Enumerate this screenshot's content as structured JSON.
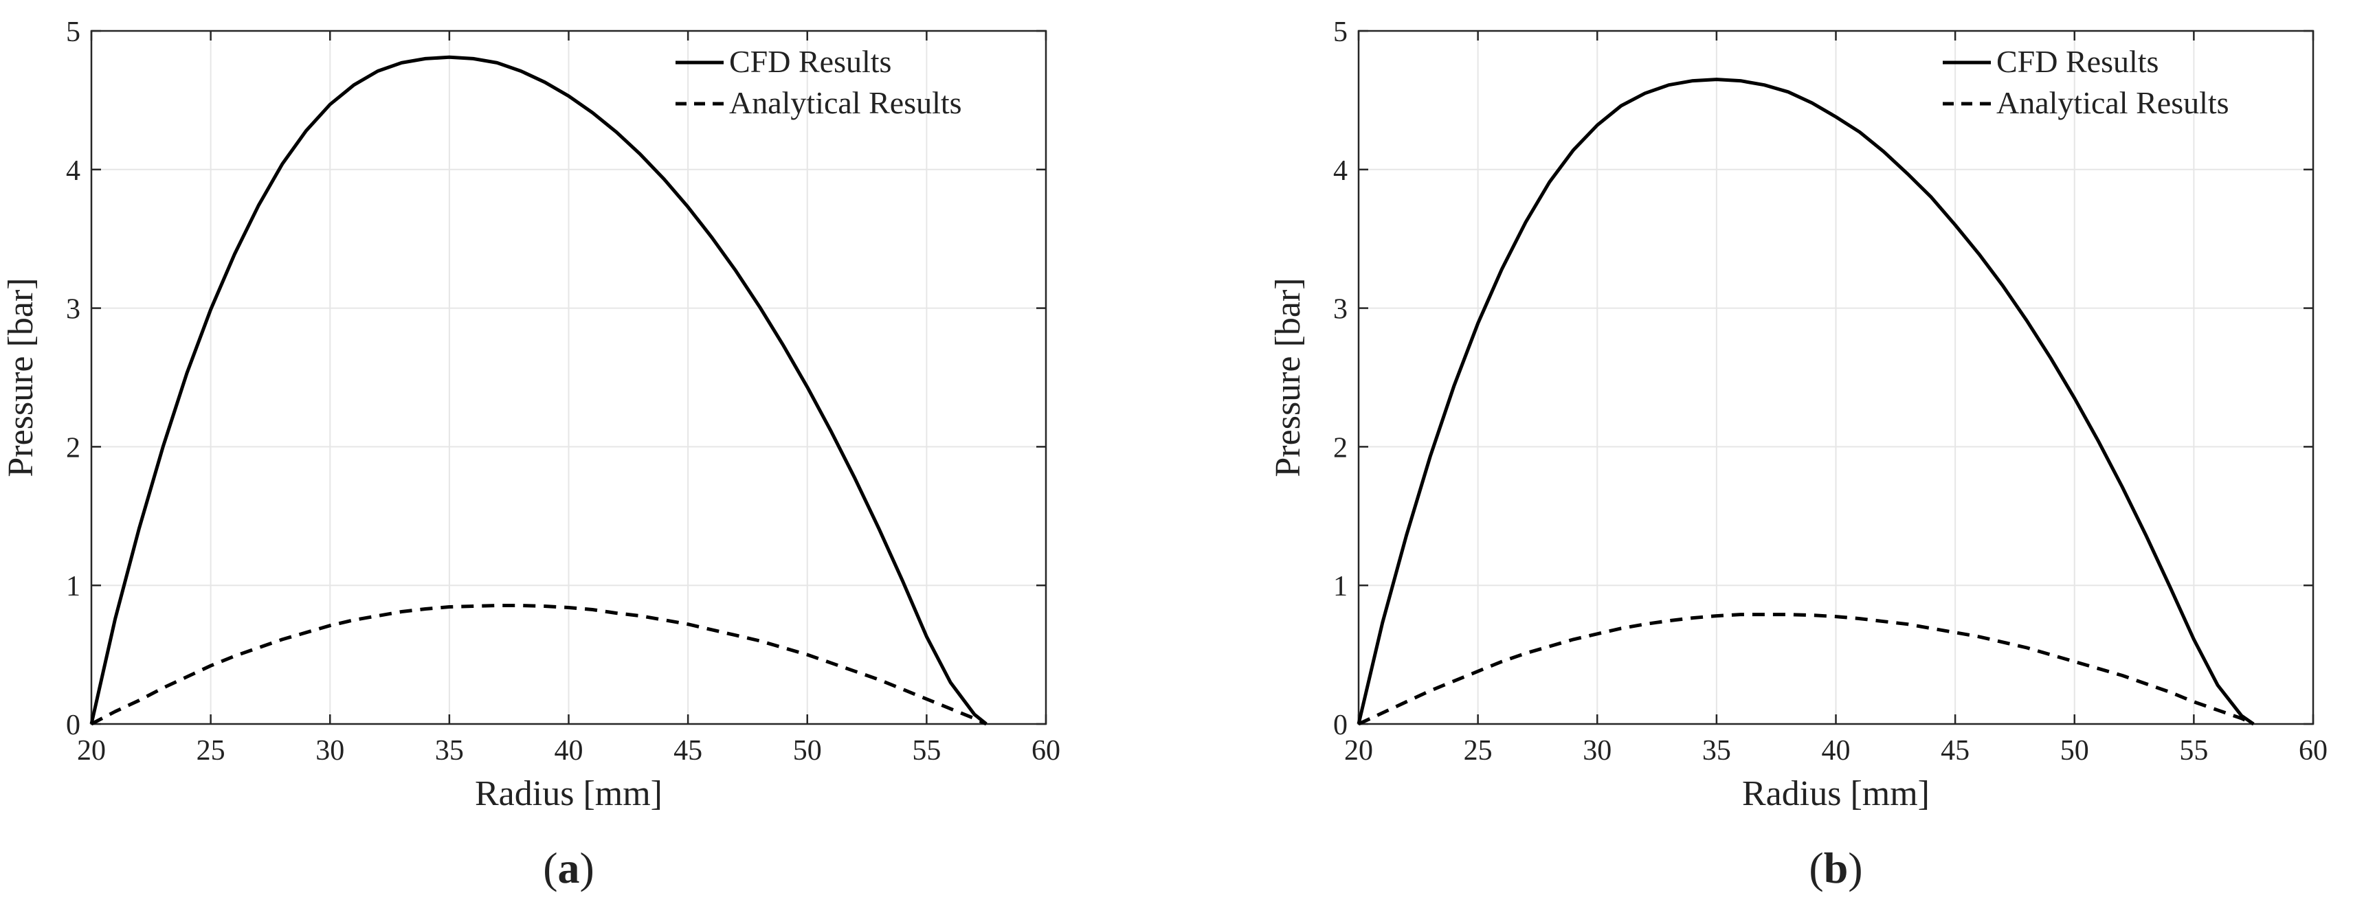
{
  "figure": {
    "panels": [
      "a",
      "b"
    ]
  },
  "chart_data": [
    {
      "panel_label": "a",
      "type": "line",
      "xlabel": "Radius [mm]",
      "ylabel": "Pressure [bar]",
      "xlim": [
        20,
        60
      ],
      "ylim": [
        0,
        5
      ],
      "xticks": [
        20,
        25,
        30,
        35,
        40,
        45,
        50,
        55,
        60
      ],
      "yticks": [
        0,
        1,
        2,
        3,
        4,
        5
      ],
      "grid": true,
      "legend_position": "top-right",
      "series": [
        {
          "name": "CFD Results",
          "style": "solid",
          "color": "#000000",
          "x": [
            20,
            21,
            22,
            23,
            24,
            25,
            26,
            27,
            28,
            29,
            30,
            31,
            32,
            33,
            34,
            35,
            36,
            37,
            38,
            39,
            40,
            41,
            42,
            43,
            44,
            45,
            46,
            47,
            48,
            49,
            50,
            51,
            52,
            53,
            54,
            55,
            56,
            57,
            57.5
          ],
          "y": [
            0,
            0.76,
            1.41,
            2.0,
            2.53,
            2.99,
            3.39,
            3.74,
            4.04,
            4.28,
            4.47,
            4.61,
            4.71,
            4.77,
            4.8,
            4.81,
            4.8,
            4.77,
            4.71,
            4.63,
            4.53,
            4.41,
            4.27,
            4.11,
            3.93,
            3.73,
            3.51,
            3.27,
            3.01,
            2.73,
            2.43,
            2.11,
            1.77,
            1.41,
            1.03,
            0.63,
            0.3,
            0.07,
            0
          ]
        },
        {
          "name": "Analytical Results",
          "style": "dashed",
          "color": "#000000",
          "x": [
            20,
            21,
            22,
            23,
            24,
            25,
            26,
            27,
            28,
            29,
            30,
            31,
            32,
            33,
            34,
            35,
            36,
            37,
            38,
            39,
            40,
            41,
            42,
            43,
            44,
            45,
            46,
            47,
            48,
            49,
            50,
            51,
            52,
            53,
            54,
            55,
            56,
            57,
            57.5
          ],
          "y": [
            0,
            0.09,
            0.17,
            0.26,
            0.34,
            0.42,
            0.49,
            0.55,
            0.61,
            0.66,
            0.71,
            0.75,
            0.78,
            0.81,
            0.83,
            0.845,
            0.85,
            0.855,
            0.855,
            0.85,
            0.84,
            0.825,
            0.8,
            0.78,
            0.75,
            0.72,
            0.68,
            0.64,
            0.6,
            0.55,
            0.5,
            0.44,
            0.38,
            0.32,
            0.25,
            0.18,
            0.11,
            0.04,
            0
          ]
        }
      ]
    },
    {
      "panel_label": "b",
      "type": "line",
      "xlabel": "Radius [mm]",
      "ylabel": "Pressure [bar]",
      "xlim": [
        20,
        60
      ],
      "ylim": [
        0,
        5
      ],
      "xticks": [
        20,
        25,
        30,
        35,
        40,
        45,
        50,
        55,
        60
      ],
      "yticks": [
        0,
        1,
        2,
        3,
        4,
        5
      ],
      "grid": true,
      "legend_position": "top-right",
      "series": [
        {
          "name": "CFD Results",
          "style": "solid",
          "color": "#000000",
          "x": [
            20,
            21,
            22,
            23,
            24,
            25,
            26,
            27,
            28,
            29,
            30,
            31,
            32,
            33,
            34,
            35,
            36,
            37,
            38,
            39,
            40,
            41,
            42,
            43,
            44,
            45,
            46,
            47,
            48,
            49,
            50,
            51,
            52,
            53,
            54,
            55,
            56,
            57,
            57.5
          ],
          "y": [
            0,
            0.73,
            1.36,
            1.93,
            2.44,
            2.89,
            3.28,
            3.62,
            3.91,
            4.14,
            4.32,
            4.46,
            4.55,
            4.61,
            4.64,
            4.65,
            4.64,
            4.61,
            4.56,
            4.48,
            4.38,
            4.27,
            4.13,
            3.97,
            3.8,
            3.6,
            3.39,
            3.16,
            2.91,
            2.64,
            2.35,
            2.04,
            1.71,
            1.36,
            0.99,
            0.61,
            0.28,
            0.06,
            0
          ]
        },
        {
          "name": "Analytical Results",
          "style": "dashed",
          "color": "#000000",
          "x": [
            20,
            21,
            22,
            23,
            24,
            25,
            26,
            27,
            28,
            29,
            30,
            31,
            32,
            33,
            34,
            35,
            36,
            37,
            38,
            39,
            40,
            41,
            42,
            43,
            44,
            45,
            46,
            47,
            48,
            49,
            50,
            51,
            52,
            53,
            54,
            55,
            56,
            57,
            57.5
          ],
          "y": [
            0,
            0.08,
            0.16,
            0.24,
            0.31,
            0.38,
            0.45,
            0.51,
            0.56,
            0.61,
            0.65,
            0.69,
            0.72,
            0.745,
            0.765,
            0.78,
            0.79,
            0.79,
            0.79,
            0.785,
            0.775,
            0.76,
            0.74,
            0.72,
            0.69,
            0.66,
            0.63,
            0.59,
            0.55,
            0.5,
            0.45,
            0.4,
            0.35,
            0.29,
            0.23,
            0.16,
            0.1,
            0.04,
            0
          ]
        }
      ]
    }
  ]
}
